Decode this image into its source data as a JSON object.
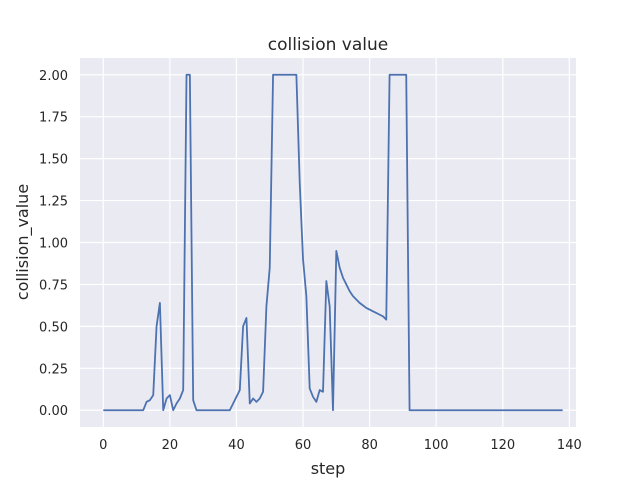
{
  "chart_data": {
    "type": "line",
    "title": "collision value",
    "xlabel": "step",
    "ylabel": "collision_value",
    "xlim": [
      -7,
      142
    ],
    "ylim": [
      -0.1,
      2.1
    ],
    "xticks": [
      0,
      20,
      40,
      60,
      80,
      100,
      120,
      140
    ],
    "yticks": [
      0.0,
      0.25,
      0.5,
      0.75,
      1.0,
      1.25,
      1.5,
      1.75,
      2.0
    ],
    "ytick_labels": [
      "0.00",
      "0.25",
      "0.50",
      "0.75",
      "1.00",
      "1.25",
      "1.50",
      "1.75",
      "2.00"
    ],
    "grid": true,
    "background_color": "#eaeaf2",
    "line_color": "#4c72b0",
    "series": [
      {
        "x": [
          0,
          11,
          12,
          13,
          14,
          15,
          16,
          17,
          18,
          19,
          20,
          21,
          22,
          23,
          24,
          25,
          26,
          27,
          28,
          29,
          30,
          38,
          39,
          40,
          41,
          42,
          43,
          44,
          45,
          46,
          47,
          48,
          49,
          50,
          51,
          58,
          59,
          60,
          61,
          62,
          63,
          64,
          65,
          66,
          67,
          68,
          69,
          70,
          71,
          72,
          73,
          74,
          75,
          76,
          77,
          78,
          79,
          80,
          81,
          82,
          83,
          84,
          85,
          86,
          91,
          92,
          138
        ],
        "y": [
          0,
          0,
          0,
          0.05,
          0.06,
          0.09,
          0.5,
          0.64,
          0,
          0.07,
          0.09,
          0,
          0.04,
          0.07,
          0.12,
          2.0,
          2.0,
          0.06,
          0,
          0,
          0,
          0,
          0.04,
          0.08,
          0.12,
          0.5,
          0.55,
          0.04,
          0.07,
          0.05,
          0.07,
          0.11,
          0.62,
          0.85,
          2.0,
          2.0,
          1.36,
          0.9,
          0.68,
          0.13,
          0.08,
          0.05,
          0.12,
          0.11,
          0.77,
          0.62,
          0,
          0.95,
          0.85,
          0.79,
          0.75,
          0.71,
          0.68,
          0.66,
          0.64,
          0.625,
          0.61,
          0.6,
          0.59,
          0.58,
          0.57,
          0.56,
          0.54,
          2.0,
          2.0,
          0,
          0
        ]
      }
    ]
  }
}
